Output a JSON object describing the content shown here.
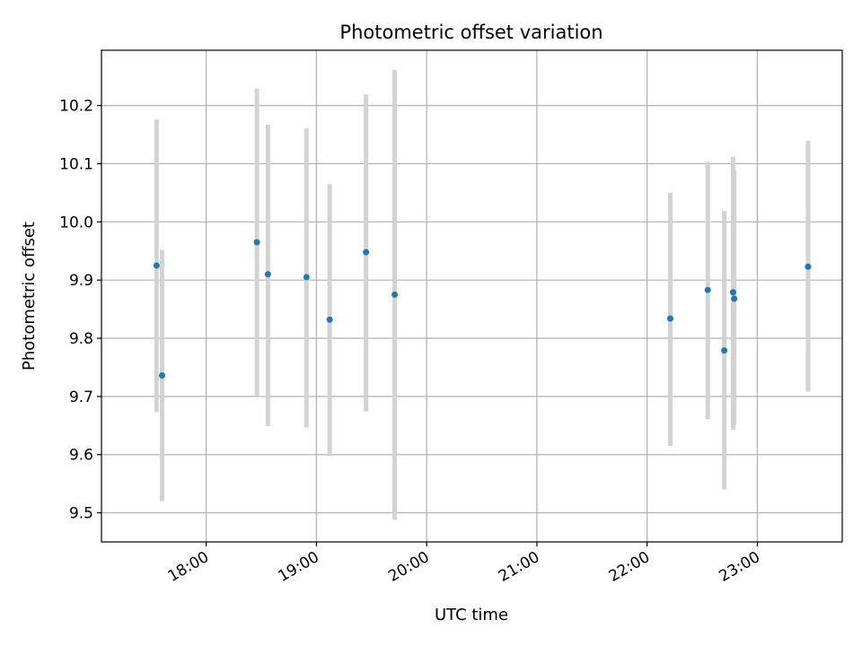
{
  "chart_data": {
    "type": "scatter",
    "title": "Photometric offset variation",
    "xlabel": "UTC time",
    "ylabel": "Photometric offset",
    "x_unit": "hours (UTC)",
    "xlim": [
      17.05,
      23.77
    ],
    "ylim": [
      9.45,
      10.295
    ],
    "x_ticks": [
      {
        "value": 18,
        "label": "18:00"
      },
      {
        "value": 19,
        "label": "19:00"
      },
      {
        "value": 20,
        "label": "20:00"
      },
      {
        "value": 21,
        "label": "21:00"
      },
      {
        "value": 22,
        "label": "22:00"
      },
      {
        "value": 23,
        "label": "23:00"
      }
    ],
    "y_ticks": [
      {
        "value": 9.5,
        "label": "9.5"
      },
      {
        "value": 9.6,
        "label": "9.6"
      },
      {
        "value": 9.7,
        "label": "9.7"
      },
      {
        "value": 9.8,
        "label": "9.8"
      },
      {
        "value": 9.9,
        "label": "9.9"
      },
      {
        "value": 10.0,
        "label": "10.0"
      },
      {
        "value": 10.1,
        "label": "10.1"
      },
      {
        "value": 10.2,
        "label": "10.2"
      }
    ],
    "grid": true,
    "marker_color": "#1f77b4",
    "errorbar_color": "#d3d3d3",
    "points": [
      {
        "x": 17.55,
        "y": 9.925,
        "ylow": 9.673,
        "yhigh": 10.176
      },
      {
        "x": 17.6,
        "y": 9.736,
        "ylow": 9.52,
        "yhigh": 9.952
      },
      {
        "x": 18.46,
        "y": 9.965,
        "ylow": 9.7,
        "yhigh": 10.229
      },
      {
        "x": 18.56,
        "y": 9.91,
        "ylow": 9.649,
        "yhigh": 10.167
      },
      {
        "x": 18.91,
        "y": 9.905,
        "ylow": 9.647,
        "yhigh": 10.161
      },
      {
        "x": 19.12,
        "y": 9.832,
        "ylow": 9.598,
        "yhigh": 10.065
      },
      {
        "x": 19.45,
        "y": 9.948,
        "ylow": 9.674,
        "yhigh": 10.219
      },
      {
        "x": 19.71,
        "y": 9.875,
        "ylow": 9.488,
        "yhigh": 10.261
      },
      {
        "x": 22.21,
        "y": 9.834,
        "ylow": 9.615,
        "yhigh": 10.05
      },
      {
        "x": 22.55,
        "y": 9.883,
        "ylow": 9.661,
        "yhigh": 10.103
      },
      {
        "x": 22.7,
        "y": 9.779,
        "ylow": 9.54,
        "yhigh": 10.019
      },
      {
        "x": 22.78,
        "y": 9.879,
        "ylow": 9.643,
        "yhigh": 10.112
      },
      {
        "x": 22.79,
        "y": 9.868,
        "ylow": 9.651,
        "yhigh": 10.088
      },
      {
        "x": 23.46,
        "y": 9.923,
        "ylow": 9.708,
        "yhigh": 10.139
      }
    ]
  }
}
